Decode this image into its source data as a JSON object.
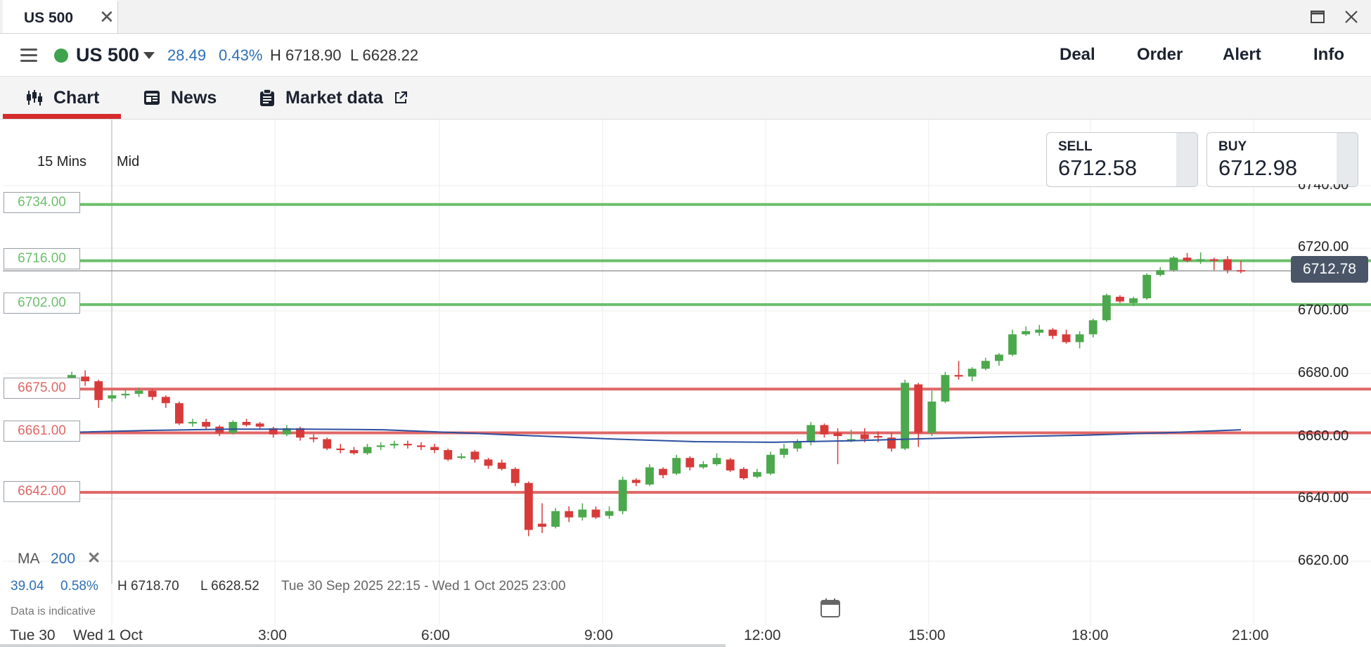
{
  "window": {
    "tab_title": "US 500",
    "close_glyph": "✕",
    "maximize_icon": "maximize-icon",
    "close_icon": "close-icon"
  },
  "header": {
    "instrument": "US 500",
    "status_color": "#3fa34d",
    "change": "28.49",
    "change_pct": "0.43%",
    "high": "H 6718.90",
    "low": "L 6628.22",
    "nav": [
      "Deal",
      "Order",
      "Alert",
      "Info"
    ]
  },
  "tabs": {
    "chart": "Chart",
    "news": "News",
    "market_data": "Market data",
    "active": "chart",
    "accent": "#d42b2b"
  },
  "chart_controls": {
    "timeframe": "15 Mins",
    "price_type": "Mid"
  },
  "quote": {
    "sell_label": "SELL",
    "sell_value": "6712.58",
    "buy_label": "BUY",
    "buy_value": "6712.98"
  },
  "levels": {
    "green": [
      "6734.00",
      "6716.00",
      "6702.00"
    ],
    "red": [
      "6675.00",
      "6661.00",
      "6642.00"
    ],
    "green_color": "#6cbf6c",
    "red_color": "#e06666"
  },
  "current_price": "6712.78",
  "y_axis": [
    "6740.00",
    "6720.00",
    "6700.00",
    "6680.00",
    "6660.00",
    "6640.00",
    "6620.00"
  ],
  "x_axis": [
    "Tue 30",
    "Wed 1 Oct",
    "3:00",
    "6:00",
    "9:00",
    "12:00",
    "15:00",
    "18:00",
    "21:00"
  ],
  "indicator": {
    "name": "MA",
    "period": "200",
    "remove": "✕",
    "line_color": "#2b4fa0"
  },
  "summary": {
    "change": "39.04",
    "change_pct": "0.58%",
    "high": "H 6718.70",
    "low": "L 6628.52",
    "range": "Tue 30 Sep 2025 22:15 - Wed 1 Oct 2025 23:00",
    "disclaimer": "Data is indicative"
  },
  "chart_data": {
    "type": "candlestick",
    "interval": "15 Mins",
    "y_range": [
      6612,
      6742
    ],
    "up_color": "#4ca84c",
    "down_color": "#d83a3a",
    "candles": [
      [
        "6678.5",
        "6679.5",
        "6680.5",
        "6678.0"
      ],
      [
        "6679.0",
        "6677.5",
        "6681.0",
        "6676.0"
      ],
      [
        "6677.5",
        "6671.5",
        "6678.0",
        "6669.0"
      ],
      [
        "6672.0",
        "6673.0",
        "6674.5",
        "6671.0"
      ],
      [
        "6673.0",
        "6673.5",
        "6675.0",
        "6672.0"
      ],
      [
        "6673.5",
        "6674.5",
        "6675.5",
        "6672.5"
      ],
      [
        "6674.5",
        "6672.5",
        "6675.0",
        "6671.5"
      ],
      [
        "6672.5",
        "6670.5",
        "6673.0",
        "6669.0"
      ],
      [
        "6670.5",
        "6664.0",
        "6671.0",
        "6663.5"
      ],
      [
        "6664.0",
        "6664.5",
        "6665.5",
        "6663.0"
      ],
      [
        "6664.5",
        "6663.0",
        "6665.5",
        "6662.0"
      ],
      [
        "6663.0",
        "6661.0",
        "6663.5",
        "6660.0"
      ],
      [
        "6661.0",
        "6664.5",
        "6665.0",
        "6660.5"
      ],
      [
        "6664.5",
        "6663.5",
        "6665.5",
        "6663.0"
      ],
      [
        "6664.0",
        "6663.0",
        "6664.5",
        "6662.0"
      ],
      [
        "6662.5",
        "6660.5",
        "6663.0",
        "6659.5"
      ],
      [
        "6660.5",
        "6662.5",
        "6663.5",
        "6660.0"
      ],
      [
        "6662.5",
        "6659.5",
        "6663.0",
        "6658.5"
      ],
      [
        "6659.5",
        "6659.0",
        "6660.5",
        "6658.0"
      ],
      [
        "6659.0",
        "6656.0",
        "6659.5",
        "6655.5"
      ],
      [
        "6656.0",
        "6655.5",
        "6657.5",
        "6654.5"
      ],
      [
        "6655.5",
        "6654.5",
        "6656.5",
        "6654.0"
      ],
      [
        "6654.5",
        "6656.5",
        "6657.5",
        "6654.0"
      ],
      [
        "6656.5",
        "6657.0",
        "6658.0",
        "6655.5"
      ],
      [
        "6657.0",
        "6657.5",
        "6658.5",
        "6656.0"
      ],
      [
        "6657.5",
        "6657.0",
        "6658.5",
        "6656.0"
      ],
      [
        "6657.0",
        "6656.5",
        "6658.0",
        "6655.5"
      ],
      [
        "6656.5",
        "6655.5",
        "6657.5",
        "6654.5"
      ],
      [
        "6655.5",
        "6652.5",
        "6656.0",
        "6652.0"
      ],
      [
        "6653.0",
        "6653.5",
        "6654.5",
        "6652.5"
      ],
      [
        "6655.0",
        "6652.5",
        "6655.5",
        "6651.5"
      ],
      [
        "6652.5",
        "6650.5",
        "6653.0",
        "6649.5"
      ],
      [
        "6651.5",
        "6649.5",
        "6652.5",
        "6649.0"
      ],
      [
        "6649.5",
        "6645.0",
        "6650.0",
        "6644.0"
      ],
      [
        "6645.0",
        "6630.0",
        "6645.5",
        "6628.0"
      ],
      [
        "6632.0",
        "6631.0",
        "6638.5",
        "6629.0"
      ],
      [
        "6631.0",
        "6636.0",
        "6637.0",
        "6630.5"
      ],
      [
        "6636.0",
        "6634.0",
        "6637.5",
        "6632.5"
      ],
      [
        "6634.0",
        "6636.5",
        "6638.5",
        "6633.0"
      ],
      [
        "6636.5",
        "6634.0",
        "6637.5",
        "6633.5"
      ],
      [
        "6634.5",
        "6636.0",
        "6637.5",
        "6633.5"
      ],
      [
        "6636.0",
        "6646.0",
        "6647.0",
        "6635.0"
      ],
      [
        "6646.0",
        "6645.0",
        "6646.5",
        "6644.0"
      ],
      [
        "6644.5",
        "6650.0",
        "6651.0",
        "6644.0"
      ],
      [
        "6649.5",
        "6647.5",
        "6650.0",
        "6646.5"
      ],
      [
        "6648.0",
        "6653.0",
        "6654.0",
        "6647.5"
      ],
      [
        "6653.0",
        "6650.0",
        "6653.5",
        "6649.0"
      ],
      [
        "6650.0",
        "6651.0",
        "6652.0",
        "6649.5"
      ],
      [
        "6651.0",
        "6653.0",
        "6654.5",
        "6650.5"
      ],
      [
        "6652.5",
        "6649.0",
        "6653.0",
        "6648.5"
      ],
      [
        "6649.5",
        "6646.5",
        "6650.0",
        "6646.0"
      ],
      [
        "6647.0",
        "6648.5",
        "6649.5",
        "6646.5"
      ],
      [
        "6648.0",
        "6654.0",
        "6655.0",
        "6647.5"
      ],
      [
        "6654.0",
        "6656.0",
        "6657.5",
        "6653.0"
      ],
      [
        "6656.0",
        "6658.0",
        "6659.0",
        "6655.0"
      ],
      [
        "6658.0",
        "6663.5",
        "6664.5",
        "6657.0"
      ],
      [
        "6663.5",
        "6660.5",
        "6664.0",
        "6659.5"
      ],
      [
        "6661.0",
        "6660.0",
        "6662.5",
        "6651.0"
      ],
      [
        "6659.0",
        "6659.0",
        "6662.0",
        "6658.0"
      ],
      [
        "6660.5",
        "6659.0",
        "6662.5",
        "6658.0"
      ],
      [
        "6660.0",
        "6659.5",
        "6661.5",
        "6658.0"
      ],
      [
        "6659.5",
        "6656.0",
        "6661.0",
        "6655.0"
      ],
      [
        "6656.0",
        "6677.0",
        "6678.0",
        "6655.5"
      ],
      [
        "6676.5",
        "6661.0",
        "6677.0",
        "6656.5"
      ],
      [
        "6661.0",
        "6671.0",
        "6674.5",
        "6660.0"
      ],
      [
        "6671.0",
        "6679.5",
        "6680.5",
        "6670.5"
      ],
      [
        "6679.5",
        "6679.0",
        "6684.0",
        "6678.0"
      ],
      [
        "6679.0",
        "6681.5",
        "6682.0",
        "6677.5"
      ],
      [
        "6681.5",
        "6684.0",
        "6685.0",
        "6681.0"
      ],
      [
        "6684.0",
        "6686.0",
        "6686.5",
        "6682.5"
      ],
      [
        "6686.0",
        "6692.5",
        "6694.0",
        "6685.5"
      ],
      [
        "6692.5",
        "6693.5",
        "6695.0",
        "6692.0"
      ],
      [
        "6693.0",
        "6694.0",
        "6695.5",
        "6692.0"
      ],
      [
        "6694.0",
        "6692.0",
        "6694.5",
        "6691.0"
      ],
      [
        "6692.5",
        "6690.0",
        "6694.0",
        "6689.5"
      ],
      [
        "6690.0",
        "6692.5",
        "6693.5",
        "6688.0"
      ],
      [
        "6692.5",
        "6697.0",
        "6697.5",
        "6691.5"
      ],
      [
        "6697.0",
        "6705.0",
        "6705.5",
        "6696.5"
      ],
      [
        "6704.5",
        "6703.0",
        "6705.0",
        "6702.5"
      ],
      [
        "6702.5",
        "6704.0",
        "6704.5",
        "6701.5"
      ],
      [
        "6704.0",
        "6711.5",
        "6712.0",
        "6703.5"
      ],
      [
        "6711.5",
        "6713.0",
        "6714.0",
        "6711.0"
      ],
      [
        "6713.0",
        "6717.0",
        "6717.5",
        "6712.5"
      ],
      [
        "6717.0",
        "6716.0",
        "6718.5",
        "6715.5"
      ],
      [
        "6716.0",
        "6716.5",
        "6718.7",
        "6715.0"
      ],
      [
        "6716.5",
        "6716.0",
        "6717.0",
        "6713.0"
      ],
      [
        "6716.5",
        "6713.0",
        "6717.5",
        "6712.0"
      ],
      [
        "6713.0",
        "6712.8",
        "6716.0",
        "6712.0"
      ]
    ],
    "ma_200": [
      [
        "6661.2",
        "6661.8",
        "6662.2",
        "6662.2",
        "6662.0",
        "6661.0",
        "6660.0",
        "6659.0",
        "6658.2",
        "6658.0",
        "6658.5",
        "6659.2",
        "6659.8",
        "6660.3",
        "6661.0",
        "6662.0"
      ]
    ]
  }
}
